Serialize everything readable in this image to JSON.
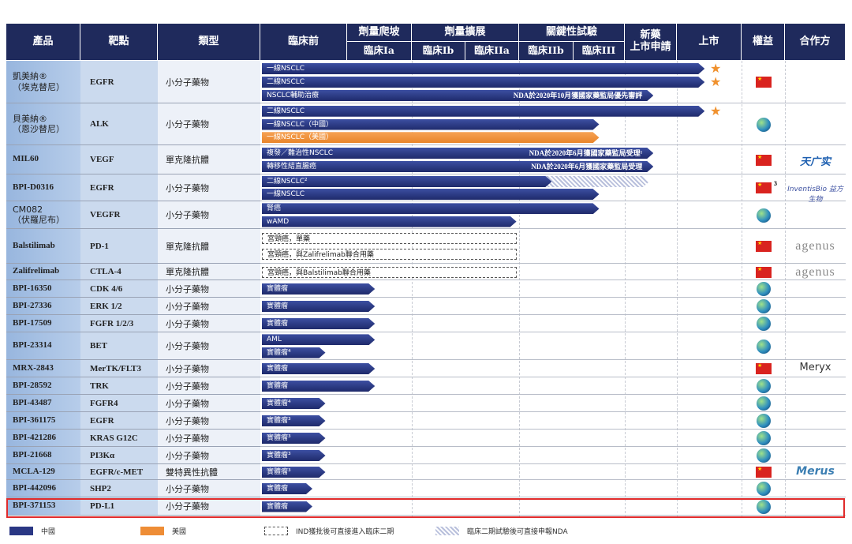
{
  "header": {
    "product": "產品",
    "target": "靶點",
    "type": "類型",
    "preclinical": "臨床前",
    "dose_escalation": "劑量爬坡",
    "dose_expansion": "劑量擴展",
    "pivotal": "關鍵性試驗",
    "nda": "新藥\n上市申請",
    "market": "上市",
    "rights": "權益",
    "partner": "合作方",
    "ph_ia": "臨床Ia",
    "ph_ib": "臨床Ib",
    "ph_iia": "臨床IIa",
    "ph_iib": "臨床IIb",
    "ph_iii": "臨床III"
  },
  "stage_scale_note": "bar end in stage units: 0=preclinical start,1=Ia,2=Ib,3=IIa,4=IIb,5=III,6=NDA,7=market",
  "rows": [
    {
      "product": "凱美納®\n（埃克替尼）",
      "target": "EGFR",
      "type": "小分子藥物",
      "rights": "china",
      "partner": "",
      "bars": [
        {
          "label": "一線NSCLC",
          "end": 7.43,
          "region": "china",
          "launched": true
        },
        {
          "label": "二線NSCLC",
          "end": 7.43,
          "region": "china",
          "launched": true
        },
        {
          "label": "NSCLC輔助治療",
          "end": 6.55,
          "region": "china",
          "note": "NDA於2020年10月獲國家藥監局優先審評"
        }
      ]
    },
    {
      "product": "貝美納®\n（恩沙替尼）",
      "target": "ALK",
      "type": "小分子藥物",
      "rights": "global",
      "partner": "",
      "bars": [
        {
          "label": "二線NSCLC",
          "end": 7.43,
          "region": "china",
          "launched": true
        },
        {
          "label": "一線NSCLC（中國）",
          "end": 5.5,
          "region": "china"
        },
        {
          "label": "一線NSCLC（美國）",
          "end": 5.5,
          "region": "us"
        }
      ]
    },
    {
      "product": "MIL60",
      "target": "VEGF",
      "type": "單克隆抗體",
      "rights": "china",
      "partner": "天广实",
      "bars": [
        {
          "label": "複發／難治性NSCLC",
          "end": 6.55,
          "region": "china",
          "note": "NDA於2020年6月獲國家藥監局受理¹"
        },
        {
          "label": "轉移性結直腸癌",
          "end": 6.55,
          "region": "china",
          "note": "NDA於2020年6月獲國家藥監局受理"
        }
      ]
    },
    {
      "product": "BPI-D0316",
      "target": "EGFR",
      "type": "小分子藥物",
      "rights": "china",
      "rights_sup": "3",
      "partner": "InventisBio 益方生物",
      "bars": [
        {
          "label": "二線NSCLC²",
          "end": 4.6,
          "hatch_end": 6.47,
          "region": "china"
        },
        {
          "label": "一線NSCLC",
          "end": 5.5,
          "region": "china"
        }
      ]
    },
    {
      "product": "CM082\n（伏羅尼布）",
      "target": "VEGFR",
      "type": "小分子藥物",
      "rights": "global",
      "partner": "",
      "bars": [
        {
          "label": "腎癌",
          "end": 5.5,
          "region": "china"
        },
        {
          "label": "wAMD",
          "end": 3.95,
          "region": "china"
        }
      ]
    },
    {
      "product": "Balstilimab",
      "target": "PD-1",
      "type": "單克隆抗體",
      "rights": "china",
      "partner": "agenus",
      "bars": [
        {
          "label": "宮頸癌，單藥",
          "end": 3.95,
          "region": "ind"
        },
        {
          "label": "宮頸癌，與Zalifrelimab聯合用藥",
          "end": 3.95,
          "region": "ind"
        }
      ]
    },
    {
      "product": "Zalifrelimab",
      "target": "CTLA-4",
      "type": "單克隆抗體",
      "rights": "china",
      "partner": "agenus",
      "bars": [
        {
          "label": "宮頸癌，與Balstilimab聯合用藥",
          "end": 3.95,
          "region": "ind"
        }
      ]
    },
    {
      "product": "BPI-16350",
      "target": "CDK 4/6",
      "type": "小分子藥物",
      "rights": "global",
      "partner": "",
      "bars": [
        {
          "label": "實體瘤",
          "end": 1.43,
          "region": "china"
        }
      ]
    },
    {
      "product": "BPI-27336",
      "target": "ERK 1/2",
      "type": "小分子藥物",
      "rights": "global",
      "partner": "",
      "bars": [
        {
          "label": "實體瘤",
          "end": 1.43,
          "region": "china"
        }
      ]
    },
    {
      "product": "BPI-17509",
      "target": "FGFR 1/2/3",
      "type": "小分子藥物",
      "rights": "global",
      "partner": "",
      "bars": [
        {
          "label": "實體瘤",
          "end": 1.43,
          "region": "china"
        }
      ]
    },
    {
      "product": "BPI-23314",
      "target": "BET",
      "type": "小分子藥物",
      "rights": "global",
      "partner": "",
      "bars": [
        {
          "label": "AML",
          "end": 1.43,
          "region": "china"
        },
        {
          "label": "實體瘤⁴",
          "end": 0.75,
          "region": "china"
        }
      ]
    },
    {
      "product": "MRX-2843",
      "target": "MerTK/FLT3",
      "type": "小分子藥物",
      "rights": "china",
      "partner": "Meryx",
      "bars": [
        {
          "label": "實體瘤",
          "end": 1.43,
          "region": "china"
        }
      ]
    },
    {
      "product": "BPI-28592",
      "target": "TRK",
      "type": "小分子藥物",
      "rights": "global",
      "partner": "",
      "bars": [
        {
          "label": "實體瘤",
          "end": 1.43,
          "region": "china"
        }
      ]
    },
    {
      "product": "BPI-43487",
      "target": "FGFR4",
      "type": "小分子藥物",
      "rights": "global",
      "partner": "",
      "bars": [
        {
          "label": "實體瘤⁴",
          "end": 0.75,
          "region": "china"
        }
      ]
    },
    {
      "product": "BPI-361175",
      "target": "EGFR",
      "type": "小分子藥物",
      "rights": "global",
      "partner": "",
      "bars": [
        {
          "label": "實體瘤³",
          "end": 0.75,
          "region": "china"
        }
      ]
    },
    {
      "product": "BPI-421286",
      "target": "KRAS G12C",
      "type": "小分子藥物",
      "rights": "global",
      "partner": "",
      "bars": [
        {
          "label": "實體瘤³",
          "end": 0.75,
          "region": "china"
        }
      ]
    },
    {
      "product": "BPI-21668",
      "target": "PI3Kα",
      "type": "小分子藥物",
      "rights": "global",
      "partner": "",
      "bars": [
        {
          "label": "實體瘤³",
          "end": 0.75,
          "region": "china"
        }
      ]
    },
    {
      "product": "MCLA-129",
      "target": "EGFR/c-MET",
      "type": "雙特異性抗體",
      "rights": "china",
      "partner": "Merus",
      "bars": [
        {
          "label": "實體瘤³",
          "end": 0.75,
          "region": "china"
        }
      ]
    },
    {
      "product": "BPI-442096",
      "target": "SHP2",
      "type": "小分子藥物",
      "rights": "global",
      "partner": "",
      "bars": [
        {
          "label": "實體瘤",
          "end": 0.6,
          "region": "china"
        }
      ]
    },
    {
      "product": "BPI-371153",
      "target": "PD-L1",
      "type": "小分子藥物",
      "rights": "global",
      "partner": "",
      "highlighted": true,
      "bars": [
        {
          "label": "實體瘤",
          "end": 0.6,
          "region": "china"
        }
      ]
    }
  ],
  "legend": {
    "china": "中國",
    "us": "美國",
    "ind": "IND獲批後可直接進入臨床二期",
    "hatch": "臨床二期試驗後可直接申報NDA"
  },
  "colors": {
    "header": "#1f2a5c",
    "china": "#2a3784",
    "us": "#ee8d36",
    "highlight": "#e02b2b"
  }
}
